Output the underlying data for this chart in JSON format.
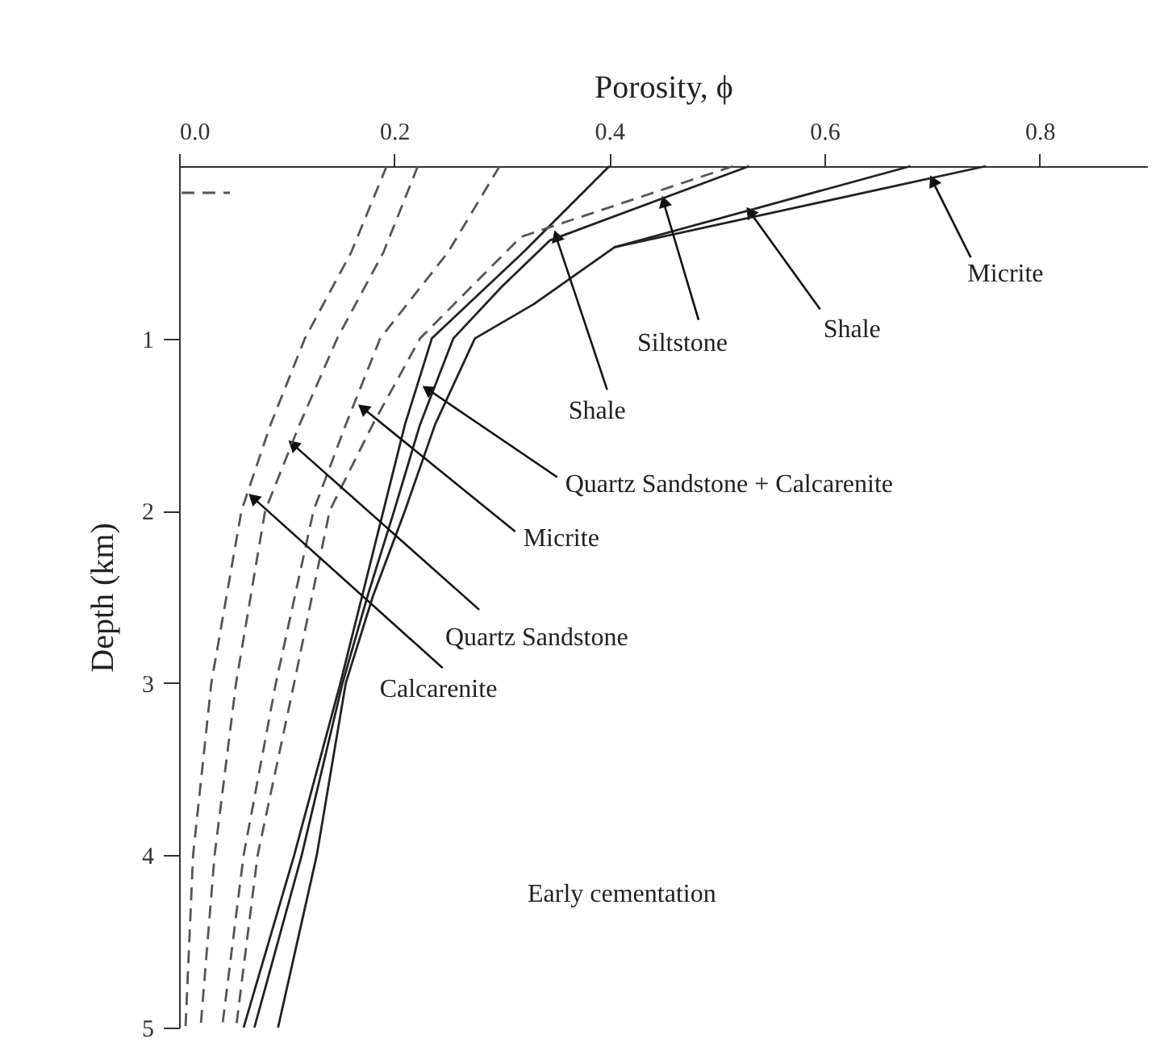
{
  "chart_data": {
    "type": "line",
    "xlabel": "Porosity, ϕ",
    "ylabel": "Depth (km)",
    "xlim": [
      0,
      0.9
    ],
    "xticks": [
      {
        "value": 0,
        "label": "0.0"
      },
      0.2,
      0.4,
      0.6,
      0.8
    ],
    "ylim": [
      5,
      0
    ],
    "yticks": [
      1,
      2,
      3,
      4,
      5
    ],
    "legend": "bottom",
    "series": [
      {
        "color": "#222222",
        "line_style": "solid",
        "x": [
          0.4,
          0.32,
          0.235,
          0.21,
          0.19,
          0.17,
          0.15,
          0.107,
          0.06
        ],
        "values": [
          0,
          0.5,
          1.0,
          1.5,
          2.0,
          2.5,
          3.0,
          4.0,
          5.0
        ]
      },
      {
        "color": "#222222",
        "line_style": "solid",
        "x": [
          0.53,
          0.345,
          0.3,
          0.255,
          0.224,
          0.2,
          0.175,
          0.152,
          0.114,
          0.07
        ],
        "values": [
          0,
          0.43,
          0.7,
          1.0,
          1.5,
          2.0,
          2.5,
          3.0,
          4.0,
          5.0
        ]
      },
      {
        "color": "#222222",
        "line_style": "solid",
        "x": [
          0.68,
          0.405,
          0.33,
          0.275,
          0.238,
          0.21,
          0.18,
          0.155,
          0.128,
          0.092
        ],
        "values": [
          0,
          0.47,
          0.8,
          1.0,
          1.5,
          2.0,
          2.5,
          3.0,
          4.0,
          5.0
        ]
      },
      {
        "color": "#222222",
        "line_style": "solid",
        "x": [
          0.75,
          0.405
        ],
        "values": [
          0,
          0.47
        ]
      },
      {
        "name": "Early cementation",
        "color": "#555555",
        "line_style": "dashed",
        "x": [
          0.193,
          0.16,
          0.117,
          0.085,
          0.058,
          0.03,
          0.013,
          0.006
        ],
        "values": [
          0,
          0.5,
          1.0,
          1.5,
          2.0,
          3.0,
          4.0,
          5.0
        ]
      },
      {
        "color": "#555555",
        "line_style": "dashed",
        "x": [
          0.222,
          0.19,
          0.147,
          0.112,
          0.08,
          0.053,
          0.033,
          0.02
        ],
        "values": [
          0,
          0.5,
          1.0,
          1.5,
          2.0,
          3.0,
          4.0,
          5.0
        ]
      },
      {
        "color": "#555555",
        "line_style": "dashed",
        "x": [
          0.298,
          0.25,
          0.187,
          0.155,
          0.125,
          0.09,
          0.06,
          0.04
        ],
        "values": [
          0,
          0.5,
          1.0,
          1.5,
          2.0,
          3.0,
          4.0,
          5.0
        ]
      },
      {
        "color": "#555555",
        "line_style": "dashed",
        "x": [
          0.515,
          0.318,
          0.224,
          0.18,
          0.14,
          0.107,
          0.073,
          0.053
        ],
        "values": [
          0,
          0.41,
          1.0,
          1.5,
          2.0,
          3.0,
          4.0,
          5.0
        ]
      }
    ],
    "annotations": [
      {
        "text": "Micrite",
        "x": 0.7,
        "y": 0.08
      },
      {
        "text": "Shale",
        "x": 0.53,
        "y": 0.26
      },
      {
        "text": "Siltstone",
        "x": 0.45,
        "y": 0.2
      },
      {
        "text": "Shale",
        "x": 0.35,
        "y": 0.4
      },
      {
        "text": "Quartz Sandstone + Calcarenite",
        "x": 0.23,
        "y": 1.29
      },
      {
        "text": "Micrite",
        "x": 0.17,
        "y": 1.4
      },
      {
        "text": "Quartz Sandstone",
        "x": 0.105,
        "y": 1.61
      },
      {
        "text": "Calcarenite",
        "x": 0.068,
        "y": 1.92
      }
    ]
  }
}
